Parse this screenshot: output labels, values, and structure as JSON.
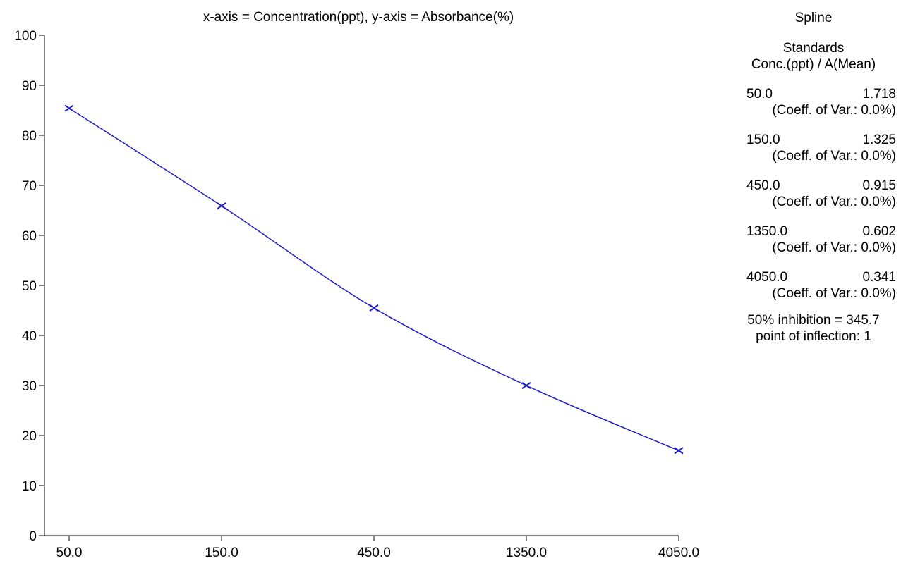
{
  "chart_data": {
    "type": "line",
    "title": "x-axis = Concentration(ppt), y-axis = Absorbance(%)",
    "x_scale": "log",
    "x": [
      50.0,
      150.0,
      450.0,
      1350.0,
      4050.0
    ],
    "x_tick_labels": [
      "50.0",
      "150.0",
      "450.0",
      "1350.0",
      "4050.0"
    ],
    "y_ticks": [
      0,
      10,
      20,
      30,
      40,
      50,
      60,
      70,
      80,
      90,
      100
    ],
    "ylim": [
      0,
      100
    ],
    "grid": false,
    "series": [
      {
        "values": [
          85.4,
          65.9,
          45.5,
          30.0,
          17.0
        ],
        "color": "#1f1fbf",
        "marker": "x"
      }
    ]
  },
  "panel": {
    "method": "Spline",
    "standards_heading": "Standards",
    "standards_subheading": "Conc.(ppt) / A(Mean)",
    "standards": [
      {
        "conc": "50.0",
        "mean": "1.718",
        "cv": "(Coeff. of Var.: 0.0%)"
      },
      {
        "conc": "150.0",
        "mean": "1.325",
        "cv": "(Coeff. of Var.: 0.0%)"
      },
      {
        "conc": "450.0",
        "mean": "0.915",
        "cv": "(Coeff. of Var.: 0.0%)"
      },
      {
        "conc": "1350.0",
        "mean": "0.602",
        "cv": "(Coeff. of Var.: 0.0%)"
      },
      {
        "conc": "4050.0",
        "mean": "0.341",
        "cv": "(Coeff. of Var.: 0.0%)"
      }
    ],
    "inhibition": "50% inhibition = 345.7",
    "inflection": "point of inflection: 1"
  }
}
